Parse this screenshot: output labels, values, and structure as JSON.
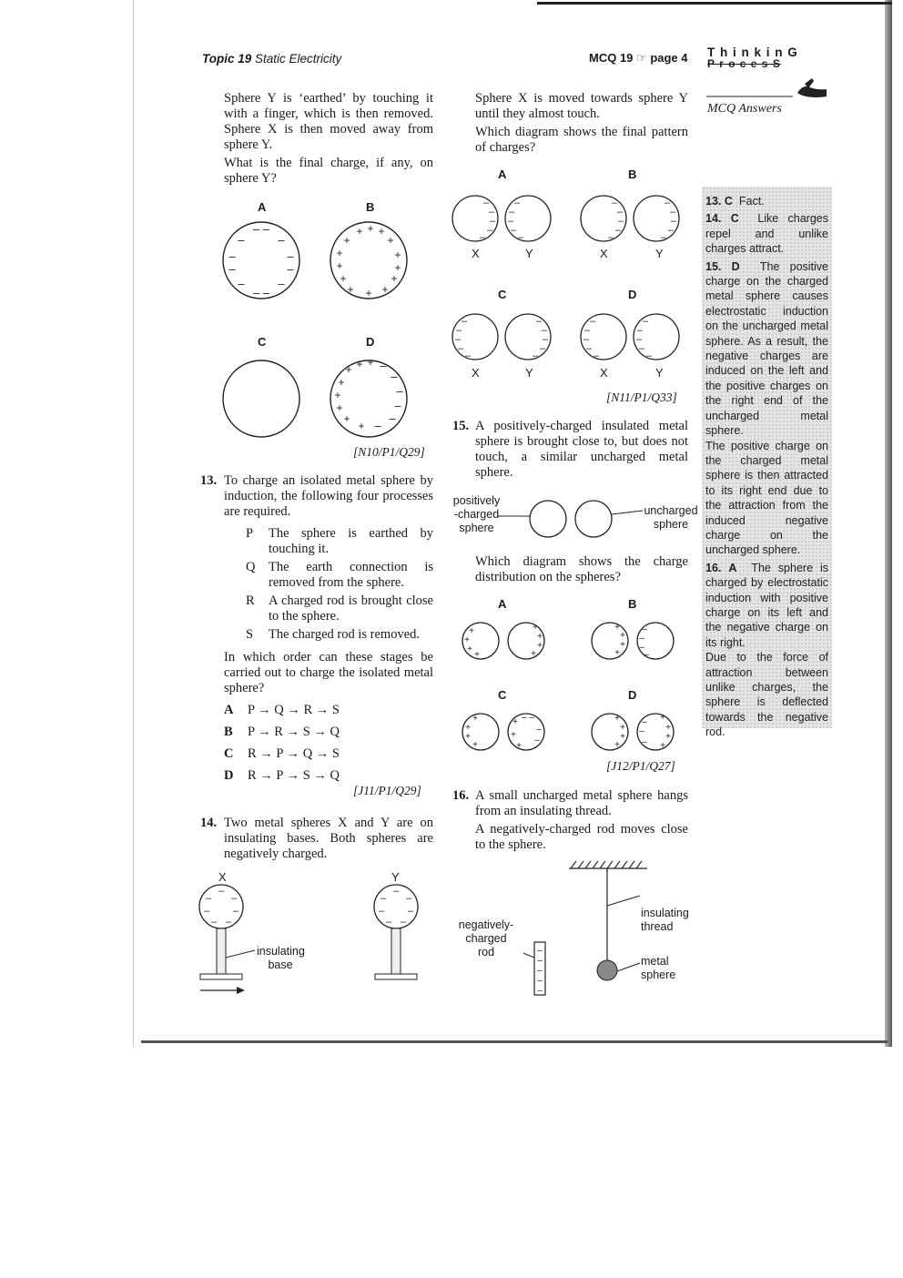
{
  "header": {
    "topic_label": "Topic 19",
    "topic_title": "Static Electricity",
    "mcq_label": "MCQ 19",
    "page_label": "page 4",
    "brand_line1": "T h i n k i n G",
    "brand_line2": "P r o c e s S",
    "answers_title": "MCQ Answers"
  },
  "q12_cont": {
    "para1": "Sphere Y is ‘earthed’ by touching it with a finger, which is then removed. Sphere X is then moved away from sphere Y.",
    "para2": "What is the final charge, if any, on sphere Y?",
    "opt_labels": [
      "A",
      "B",
      "C",
      "D"
    ],
    "ref": "[N10/P1/Q29]"
  },
  "q13": {
    "num": "13.",
    "stem": "To charge an isolated metal sphere by induction, the following four processes are required.",
    "steps": [
      {
        "key": "P",
        "text": "The sphere is earthed by touching it."
      },
      {
        "key": "Q",
        "text": "The earth connection is removed from the sphere."
      },
      {
        "key": "R",
        "text": "A charged rod is brought close to the sphere."
      },
      {
        "key": "S",
        "text": "The charged rod is removed."
      }
    ],
    "question": "In which order can these stages be carried out to charge the isolated metal sphere?",
    "options": [
      {
        "key": "A",
        "text": "P → Q → R → S"
      },
      {
        "key": "B",
        "text": "P → R → S → Q"
      },
      {
        "key": "C",
        "text": "R → P → Q → S"
      },
      {
        "key": "D",
        "text": "R → P → S → Q"
      }
    ],
    "ref": "[J11/P1/Q29]"
  },
  "q14": {
    "num": "14.",
    "stem": "Two metal spheres X and Y are on insulating bases. Both spheres are negatively charged.",
    "label_x": "X",
    "label_y": "Y",
    "base_label_line1": "insulating",
    "base_label_line2": "base",
    "para1": "Sphere X is moved towards sphere Y until they almost touch.",
    "para2": "Which diagram shows the final pattern of charges?",
    "opt_labels": [
      "A",
      "B",
      "C",
      "D"
    ],
    "sphere_labels": [
      "X",
      "Y"
    ],
    "ref": "[N11/P1/Q33]"
  },
  "q15": {
    "num": "15.",
    "stem": "A positively-charged insulated metal sphere is brought close to, but does not touch, a similar uncharged metal sphere.",
    "left_label": [
      "positively",
      "-charged",
      "sphere"
    ],
    "right_label": [
      "uncharged",
      "sphere"
    ],
    "question": "Which diagram shows the charge distribution on the spheres?",
    "opt_labels": [
      "A",
      "B",
      "C",
      "D"
    ],
    "ref": "[J12/P1/Q27]"
  },
  "q16": {
    "num": "16.",
    "stem": "A small uncharged metal sphere hangs from an insulating thread.",
    "para2": "A negatively-charged rod moves close to the sphere.",
    "rod_label": [
      "negatively-",
      "charged",
      "rod"
    ],
    "thread_label": [
      "insulating",
      "thread"
    ],
    "sphere_label": [
      "metal",
      "sphere"
    ]
  },
  "answers": [
    {
      "num": "13.",
      "key": "C",
      "text": "Fact."
    },
    {
      "num": "14.",
      "key": "C",
      "text": "Like charges repel and unlike charges attract."
    },
    {
      "num": "15.",
      "key": "D",
      "text": "The positive charge on the charged metal sphere causes electrostatic induction on the uncharged metal sphere. As a result, the negative charges are induced on the left and the positive charges on the right end of the uncharged metal sphere.",
      "text2": "The positive charge on the charged metal sphere is then attracted to its right end due to the attraction from the induced negative charge on the uncharged sphere."
    },
    {
      "num": "16.",
      "key": "A",
      "text": "The sphere is charged by electrostatic induction with positive charge on its left and the negative charge on its right.",
      "text2": "Due to the force of attraction between unlike charges, the sphere is deflected towards the negative rod."
    }
  ]
}
